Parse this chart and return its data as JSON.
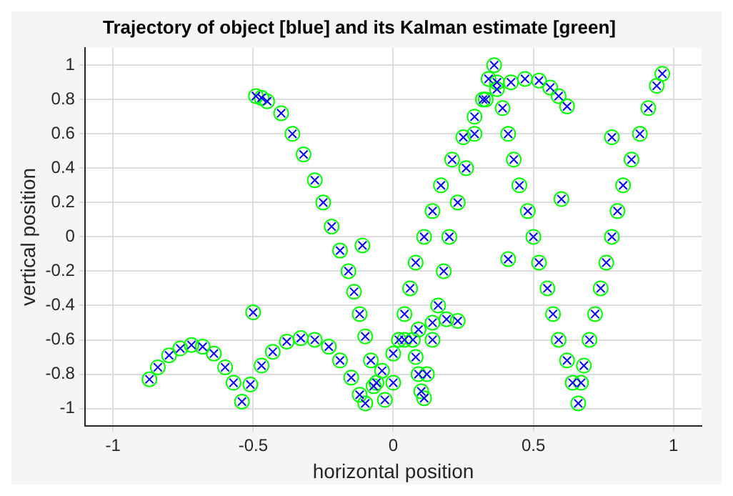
{
  "chart_data": {
    "type": "scatter",
    "title": "Trajectory of object [blue] and its Kalman estimate [green]",
    "xlabel": "horizontal position",
    "ylabel": "vertical position",
    "xlim": [
      -1.1,
      1.1
    ],
    "ylim": [
      -1.1,
      1.1
    ],
    "xticks": [
      -1,
      -0.5,
      0,
      0.5,
      1
    ],
    "yticks": [
      -1,
      -0.8,
      -0.6,
      -0.4,
      -0.2,
      0,
      0.2,
      0.4,
      0.6,
      0.8,
      1
    ],
    "grid": true,
    "series": [
      {
        "color": "#0000ff",
        "marker": "cross",
        "x": [
          -0.87,
          -0.84,
          -0.8,
          -0.76,
          -0.72,
          -0.68,
          -0.64,
          -0.6,
          -0.57,
          -0.54,
          -0.51,
          -0.47,
          -0.43,
          -0.38,
          -0.33,
          -0.28,
          -0.23,
          -0.19,
          -0.15,
          -0.12,
          -0.1,
          -0.07,
          -0.04,
          0,
          0.04,
          0.09,
          0.14,
          0.19,
          0.23,
          -0.49,
          -0.47,
          -0.45,
          -0.4,
          -0.36,
          -0.32,
          -0.28,
          -0.25,
          -0.22,
          -0.19,
          -0.16,
          -0.14,
          -0.12,
          -0.1,
          -0.08,
          -0.06,
          -0.03,
          0,
          0.02,
          0.04,
          0.06,
          0.08,
          0.11,
          0.14,
          0.17,
          0.21,
          0.25,
          0.29,
          0.33,
          0.37,
          0.42,
          0.47,
          0.52,
          0.56,
          0.59,
          0.62,
          0.11,
          0.12,
          0.14,
          0.16,
          0.18,
          0.2,
          0.23,
          0.26,
          0.29,
          0.32,
          0.34,
          0.36,
          0.37,
          0.39,
          0.41,
          0.43,
          0.45,
          0.48,
          0.5,
          0.52,
          0.55,
          0.57,
          0.59,
          0.62,
          0.64,
          0.66,
          0.67,
          0.68,
          0.7,
          0.72,
          0.74,
          0.76,
          0.78,
          0.8,
          0.82,
          0.85,
          0.88,
          0.91,
          0.94,
          0.96,
          0.07,
          0.08,
          0.09,
          0.1,
          -0.5,
          -0.11,
          0.41,
          0.6,
          0.78
        ],
        "values": [
          -0.83,
          -0.76,
          -0.69,
          -0.65,
          -0.63,
          -0.64,
          -0.68,
          -0.76,
          -0.85,
          -0.96,
          -0.86,
          -0.75,
          -0.67,
          -0.61,
          -0.59,
          -0.6,
          -0.64,
          -0.72,
          -0.82,
          -0.92,
          -0.97,
          -0.87,
          -0.78,
          -0.68,
          -0.6,
          -0.54,
          -0.5,
          -0.48,
          -0.49,
          0.82,
          0.81,
          0.79,
          0.72,
          0.6,
          0.48,
          0.33,
          0.2,
          0.06,
          -0.08,
          -0.2,
          -0.32,
          -0.45,
          -0.58,
          -0.72,
          -0.85,
          -0.95,
          -0.85,
          -0.6,
          -0.45,
          -0.3,
          -0.15,
          0,
          0.15,
          0.3,
          0.45,
          0.58,
          0.7,
          0.8,
          0.86,
          0.9,
          0.92,
          0.91,
          0.87,
          0.82,
          0.76,
          -0.94,
          -0.8,
          -0.6,
          -0.4,
          -0.2,
          0,
          0.2,
          0.4,
          0.6,
          0.8,
          0.92,
          1,
          0.9,
          0.75,
          0.6,
          0.45,
          0.3,
          0.15,
          0,
          -0.15,
          -0.3,
          -0.45,
          -0.6,
          -0.72,
          -0.85,
          -0.97,
          -0.85,
          -0.75,
          -0.6,
          -0.45,
          -0.3,
          -0.15,
          0,
          0.15,
          0.3,
          0.45,
          0.6,
          0.75,
          0.88,
          0.95,
          -0.6,
          -0.7,
          -0.8,
          -0.9,
          -0.44,
          -0.05,
          -0.13,
          0.22,
          0.58
        ]
      },
      {
        "color": "#00ff00",
        "marker": "circle",
        "x": [
          -0.87,
          -0.84,
          -0.8,
          -0.76,
          -0.72,
          -0.68,
          -0.64,
          -0.6,
          -0.57,
          -0.54,
          -0.51,
          -0.47,
          -0.43,
          -0.38,
          -0.33,
          -0.28,
          -0.23,
          -0.19,
          -0.15,
          -0.12,
          -0.1,
          -0.07,
          -0.04,
          0,
          0.04,
          0.09,
          0.14,
          0.19,
          0.23,
          -0.49,
          -0.47,
          -0.45,
          -0.4,
          -0.36,
          -0.32,
          -0.28,
          -0.25,
          -0.22,
          -0.19,
          -0.16,
          -0.14,
          -0.12,
          -0.1,
          -0.08,
          -0.06,
          -0.03,
          0,
          0.02,
          0.04,
          0.06,
          0.08,
          0.11,
          0.14,
          0.17,
          0.21,
          0.25,
          0.29,
          0.33,
          0.37,
          0.42,
          0.47,
          0.52,
          0.56,
          0.59,
          0.62,
          0.11,
          0.12,
          0.14,
          0.16,
          0.18,
          0.2,
          0.23,
          0.26,
          0.29,
          0.32,
          0.34,
          0.36,
          0.37,
          0.39,
          0.41,
          0.43,
          0.45,
          0.48,
          0.5,
          0.52,
          0.55,
          0.57,
          0.59,
          0.62,
          0.64,
          0.66,
          0.67,
          0.68,
          0.7,
          0.72,
          0.74,
          0.76,
          0.78,
          0.8,
          0.82,
          0.85,
          0.88,
          0.91,
          0.94,
          0.96,
          0.07,
          0.08,
          0.09,
          0.1,
          -0.5,
          -0.11,
          0.41,
          0.6,
          0.78
        ],
        "values": [
          -0.83,
          -0.76,
          -0.69,
          -0.65,
          -0.63,
          -0.64,
          -0.68,
          -0.76,
          -0.85,
          -0.96,
          -0.86,
          -0.75,
          -0.67,
          -0.61,
          -0.59,
          -0.6,
          -0.64,
          -0.72,
          -0.82,
          -0.92,
          -0.97,
          -0.87,
          -0.78,
          -0.68,
          -0.6,
          -0.54,
          -0.5,
          -0.48,
          -0.49,
          0.82,
          0.81,
          0.79,
          0.72,
          0.6,
          0.48,
          0.33,
          0.2,
          0.06,
          -0.08,
          -0.2,
          -0.32,
          -0.45,
          -0.58,
          -0.72,
          -0.85,
          -0.95,
          -0.85,
          -0.6,
          -0.45,
          -0.3,
          -0.15,
          0,
          0.15,
          0.3,
          0.45,
          0.58,
          0.7,
          0.8,
          0.86,
          0.9,
          0.92,
          0.91,
          0.87,
          0.82,
          0.76,
          -0.94,
          -0.8,
          -0.6,
          -0.4,
          -0.2,
          0,
          0.2,
          0.4,
          0.6,
          0.8,
          0.92,
          1,
          0.9,
          0.75,
          0.6,
          0.45,
          0.3,
          0.15,
          0,
          -0.15,
          -0.3,
          -0.45,
          -0.6,
          -0.72,
          -0.85,
          -0.97,
          -0.85,
          -0.75,
          -0.6,
          -0.45,
          -0.3,
          -0.15,
          0,
          0.15,
          0.3,
          0.45,
          0.6,
          0.75,
          0.88,
          0.95,
          -0.6,
          -0.7,
          -0.8,
          -0.9,
          -0.44,
          -0.05,
          -0.13,
          0.22,
          0.58
        ]
      }
    ]
  }
}
